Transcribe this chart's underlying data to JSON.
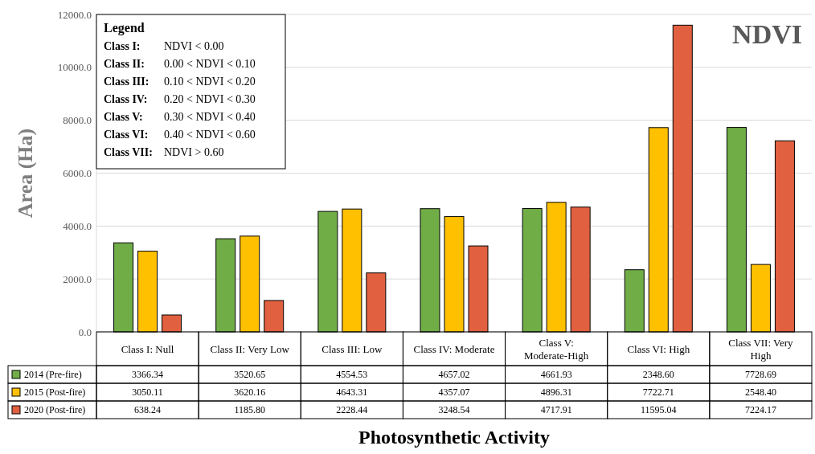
{
  "chart_data": {
    "type": "bar",
    "title": "NDVI",
    "ylabel": "Area (Ha)",
    "xlabel": "Photosynthetic Activity",
    "categories": [
      "Class I: Null",
      "Class II: Very Low",
      "Class III: Low",
      "Class IV: Moderate",
      "Class V: Moderate-High",
      "Class VI: High",
      "Class VII: Very High"
    ],
    "series": [
      {
        "name": "2014 (Pre-fire)",
        "color": "#70ad47",
        "values": [
          3366.34,
          3520.65,
          4554.53,
          4657.02,
          4661.93,
          2348.6,
          7728.69
        ],
        "value_labels": [
          "3366.34",
          "3520.65",
          "4554.53",
          "4657.02",
          "4661.93",
          "2348.60",
          "7728.69"
        ]
      },
      {
        "name": "2015 (Post-fire)",
        "color": "#ffc000",
        "values": [
          3050.11,
          3620.16,
          4643.31,
          4357.07,
          4896.31,
          7722.71,
          2548.4
        ],
        "value_labels": [
          "3050.11",
          "3620.16",
          "4643.31",
          "4357.07",
          "4896.31",
          "7722.71",
          "2548.40"
        ]
      },
      {
        "name": "2020 (Post-fire)",
        "color": "#e06040",
        "values": [
          638.24,
          1185.8,
          2228.44,
          3248.54,
          4717.91,
          11595.04,
          7224.17
        ],
        "value_labels": [
          "638.24",
          "1185.80",
          "2228.44",
          "3248.54",
          "4717.91",
          "11595.04",
          "7224.17"
        ]
      }
    ],
    "ylim": [
      0,
      12000
    ],
    "yticks": [
      {
        "value": 0,
        "label": "0.0"
      },
      {
        "value": 2000,
        "label": "2000.0"
      },
      {
        "value": 4000,
        "label": "4000.0"
      },
      {
        "value": 6000,
        "label": "6000.0"
      },
      {
        "value": 8000,
        "label": "8000.0"
      },
      {
        "value": 10000,
        "label": "10000.0"
      },
      {
        "value": 12000,
        "label": "12000.0"
      }
    ],
    "grid": "y",
    "legend": "bottom",
    "annotations": [
      "Legend",
      "Class I: NDVI < 0.00",
      "Class II: 0.00 < NDVI < 0.10",
      "Class III: 0.10 < NDVI < 0.20",
      "Class IV: 0.20 < NDVI < 0.30",
      "Class V: 0.30 < NDVI < 0.40",
      "Class VI: 0.40 < NDVI < 0.60",
      "Class VII: NDVI > 0.60"
    ]
  }
}
